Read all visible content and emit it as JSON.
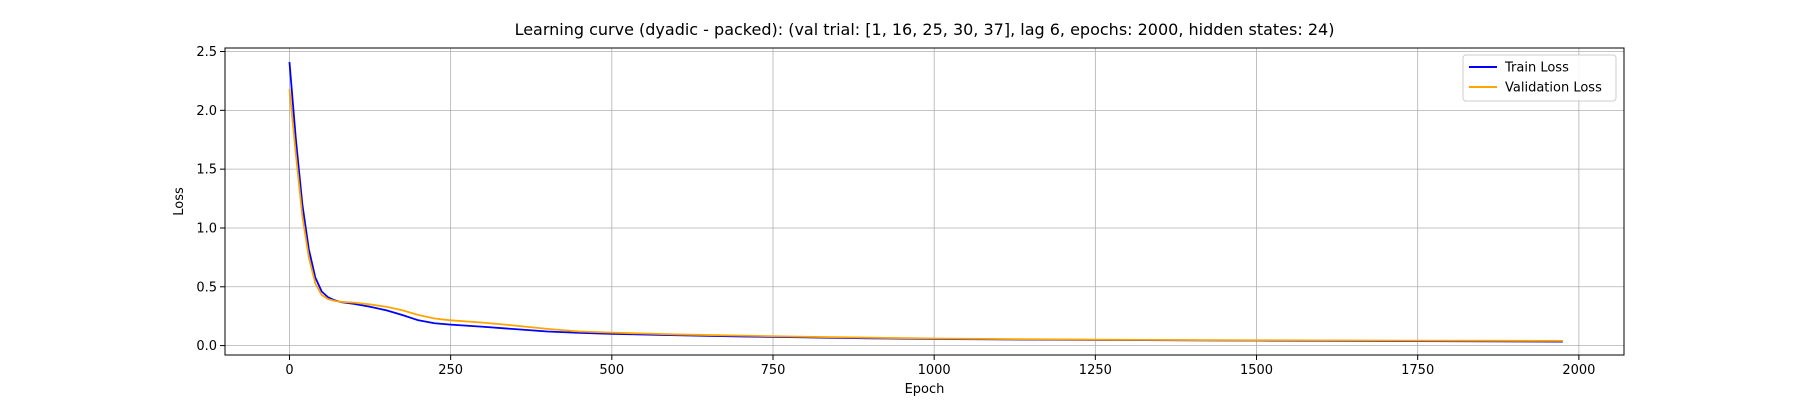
{
  "chart_data": {
    "type": "line",
    "title": "Learning curve (dyadic - packed): (val trial: [1, 16, 25, 30, 37], lag 6, epochs: 2000, hidden states: 24)",
    "xlabel": "Epoch",
    "ylabel": "Loss",
    "xlim": [
      -100,
      2070
    ],
    "ylim": [
      -0.08,
      2.53
    ],
    "xticks": [
      0,
      250,
      500,
      750,
      1000,
      1250,
      1500,
      1750,
      2000
    ],
    "yticks": [
      0.0,
      0.5,
      1.0,
      1.5,
      2.0,
      2.5
    ],
    "xtick_labels": [
      "0",
      "250",
      "500",
      "750",
      "1000",
      "1250",
      "1500",
      "1750",
      "2000"
    ],
    "ytick_labels": [
      "0.0",
      "0.5",
      "1.0",
      "1.5",
      "2.0",
      "2.5"
    ],
    "grid": true,
    "legend_position": "top-right",
    "series": [
      {
        "name": "Train Loss",
        "color": "#0000ff",
        "x": [
          0,
          10,
          20,
          30,
          40,
          50,
          60,
          70,
          80,
          100,
          125,
          150,
          175,
          200,
          225,
          250,
          300,
          350,
          400,
          450,
          500,
          600,
          700,
          800,
          900,
          1000,
          1250,
          1500,
          1750,
          1975
        ],
        "y": [
          2.41,
          1.75,
          1.2,
          0.82,
          0.58,
          0.46,
          0.41,
          0.385,
          0.37,
          0.355,
          0.33,
          0.3,
          0.26,
          0.215,
          0.19,
          0.178,
          0.16,
          0.14,
          0.12,
          0.108,
          0.1,
          0.088,
          0.078,
          0.07,
          0.062,
          0.056,
          0.048,
          0.042,
          0.038,
          0.034
        ]
      },
      {
        "name": "Validation Loss",
        "color": "#ffa500",
        "x": [
          0,
          10,
          20,
          30,
          40,
          50,
          60,
          70,
          80,
          100,
          125,
          150,
          175,
          200,
          225,
          250,
          300,
          350,
          400,
          450,
          500,
          600,
          700,
          800,
          900,
          1000,
          1250,
          1500,
          1750,
          1975
        ],
        "y": [
          2.18,
          1.62,
          1.1,
          0.75,
          0.53,
          0.43,
          0.395,
          0.38,
          0.372,
          0.365,
          0.35,
          0.33,
          0.3,
          0.26,
          0.23,
          0.215,
          0.195,
          0.17,
          0.142,
          0.12,
          0.11,
          0.095,
          0.085,
          0.075,
          0.067,
          0.06,
          0.05,
          0.045,
          0.042,
          0.04
        ]
      }
    ]
  }
}
